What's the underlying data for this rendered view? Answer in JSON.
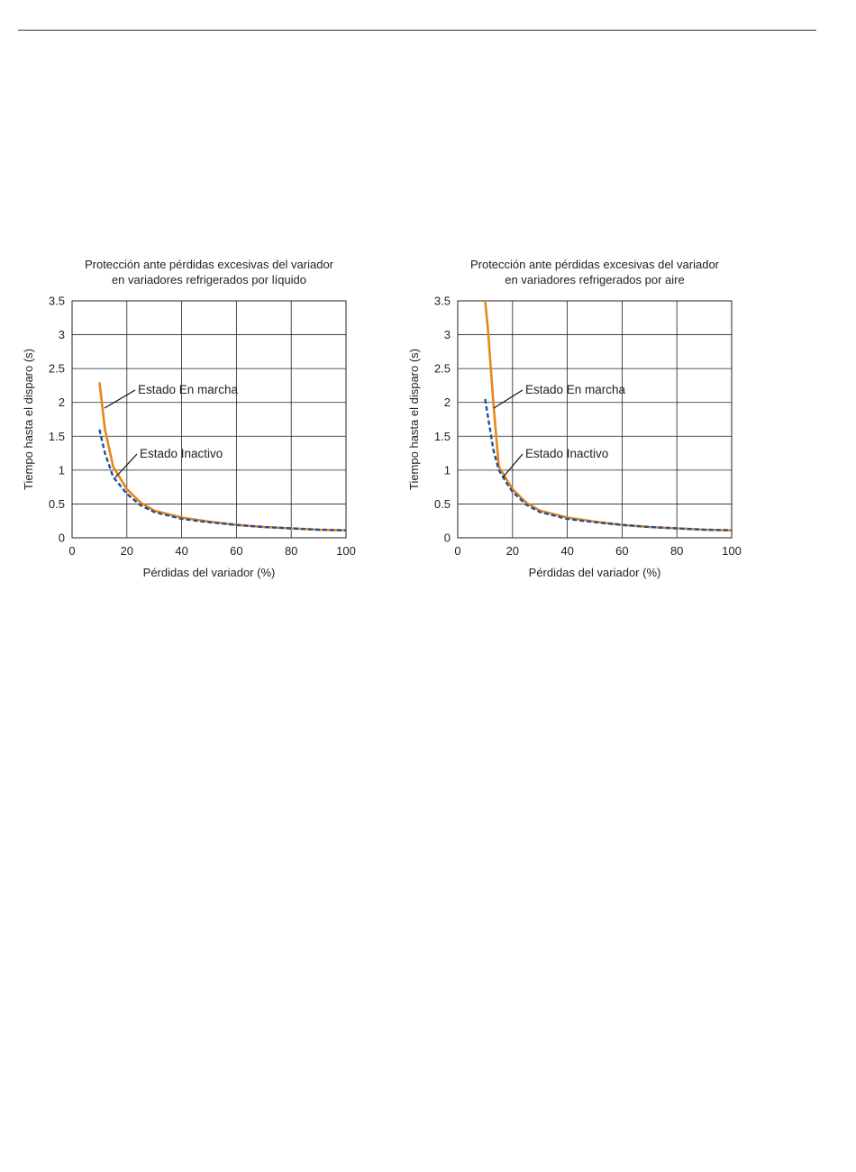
{
  "chart_data": [
    {
      "type": "line",
      "title": [
        "Protección ante pérdidas excesivas del variador",
        "en variadores refrigerados por líquido"
      ],
      "xlabel": "Pérdidas del variador (%)",
      "ylabel": "Tiempo hasta el disparo (s)",
      "xlim": [
        0,
        100
      ],
      "ylim": [
        0,
        3.5
      ],
      "xticks": [
        "0",
        "20",
        "40",
        "60",
        "80",
        "100"
      ],
      "yticks": [
        "0",
        "0.5",
        "1",
        "1.5",
        "2",
        "2.5",
        "3",
        "3.5"
      ],
      "grid": true,
      "series": [
        {
          "name": "Estado En marcha",
          "color": "#e8861a",
          "style": "solid",
          "x": [
            10,
            12,
            15,
            20,
            25,
            30,
            40,
            50,
            60,
            70,
            80,
            90,
            100
          ],
          "y": [
            2.3,
            1.6,
            1.05,
            0.72,
            0.52,
            0.4,
            0.3,
            0.24,
            0.19,
            0.16,
            0.14,
            0.12,
            0.11
          ]
        },
        {
          "name": "Estado Inactivo",
          "color": "#1f4e9c",
          "style": "dashed",
          "x": [
            10,
            12,
            15,
            20,
            25,
            30,
            40,
            50,
            60,
            70,
            80,
            90,
            100
          ],
          "y": [
            1.6,
            1.25,
            0.9,
            0.65,
            0.48,
            0.38,
            0.28,
            0.23,
            0.19,
            0.16,
            0.14,
            0.12,
            0.11
          ]
        }
      ],
      "annotations": [
        {
          "text": "Estado En marcha",
          "series": 0
        },
        {
          "text": "Estado Inactivo",
          "series": 1
        }
      ]
    },
    {
      "type": "line",
      "title": [
        "Protección ante pérdidas excesivas del variador",
        "en variadores refrigerados por aire"
      ],
      "xlabel": "Pérdidas del variador (%)",
      "ylabel": "Tiempo hasta el disparo (s)",
      "xlim": [
        0,
        100
      ],
      "ylim": [
        0,
        3.5
      ],
      "xticks": [
        "0",
        "20",
        "40",
        "60",
        "80",
        "100"
      ],
      "yticks": [
        "0",
        "0.5",
        "1",
        "1.5",
        "2",
        "2.5",
        "3",
        "3.5"
      ],
      "grid": true,
      "series": [
        {
          "name": "Estado En marcha",
          "color": "#e8861a",
          "style": "solid",
          "x": [
            10,
            11,
            13,
            15,
            18,
            20,
            25,
            30,
            40,
            50,
            60,
            70,
            80,
            90,
            100
          ],
          "y": [
            3.5,
            3.1,
            2.0,
            1.05,
            0.85,
            0.72,
            0.52,
            0.4,
            0.3,
            0.24,
            0.19,
            0.16,
            0.14,
            0.12,
            0.11
          ]
        },
        {
          "name": "Estado Inactivo",
          "color": "#1f4e9c",
          "style": "dashed",
          "x": [
            10,
            11,
            12,
            13,
            15,
            18,
            20,
            25,
            30,
            40,
            50,
            60,
            70,
            80,
            90,
            100
          ],
          "y": [
            2.05,
            1.8,
            1.55,
            1.3,
            1.0,
            0.8,
            0.68,
            0.49,
            0.38,
            0.28,
            0.23,
            0.19,
            0.16,
            0.14,
            0.12,
            0.11
          ]
        }
      ],
      "annotations": [
        {
          "text": "Estado En marcha",
          "series": 0
        },
        {
          "text": "Estado Inactivo",
          "series": 1
        }
      ]
    }
  ]
}
